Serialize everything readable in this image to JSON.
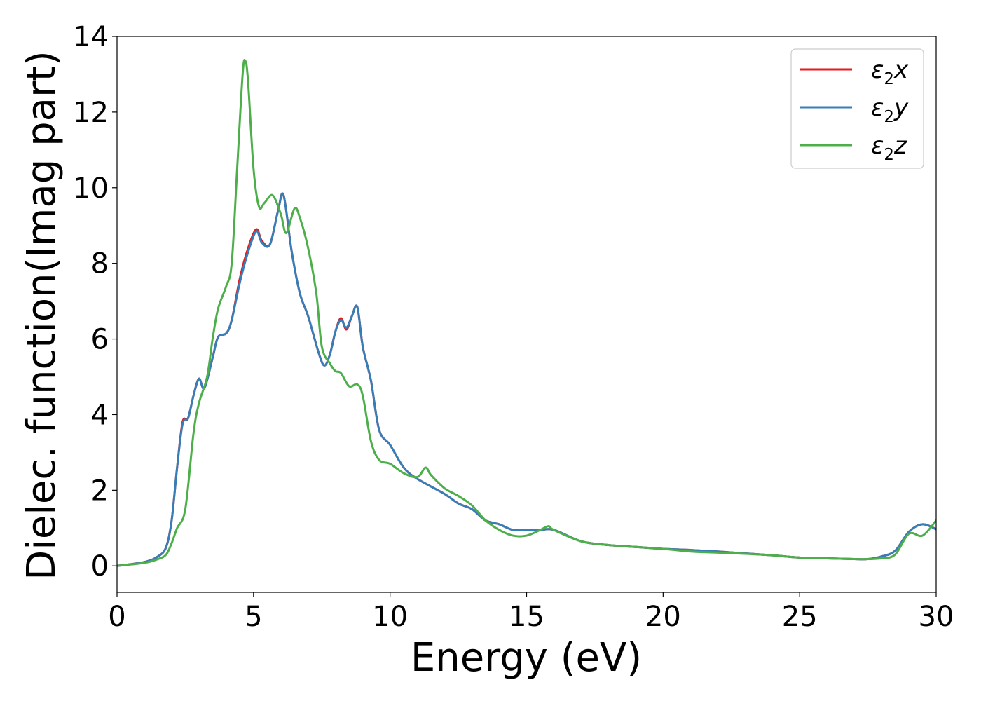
{
  "chart_data": {
    "type": "line",
    "title": "",
    "xlabel": "Energy (eV)",
    "ylabel": "Dielec. function(Imag part)",
    "xlim": [
      0,
      30
    ],
    "ylim": [
      -0.7,
      14
    ],
    "xticks": [
      0,
      5,
      10,
      15,
      20,
      25,
      30
    ],
    "yticks": [
      0,
      2,
      4,
      6,
      8,
      10,
      12,
      14
    ],
    "grid": false,
    "legend_position": "top-right",
    "series": [
      {
        "name": "ε2x",
        "base": "ε",
        "sub": "2",
        "suffix": "x",
        "color": "#e41a1c",
        "x": [
          0,
          1,
          1.5,
          1.8,
          2.0,
          2.2,
          2.4,
          2.6,
          2.8,
          3.0,
          3.2,
          3.5,
          3.7,
          4.0,
          4.2,
          4.5,
          4.8,
          5.1,
          5.3,
          5.6,
          5.9,
          6.1,
          6.4,
          6.7,
          7.0,
          7.4,
          7.6,
          7.8,
          8.0,
          8.2,
          8.4,
          8.6,
          8.8,
          9.0,
          9.3,
          9.6,
          10.0,
          10.5,
          11.0,
          12.0,
          12.5,
          13.0,
          13.5,
          14.0,
          14.5,
          15.0,
          15.5,
          16.0,
          17.0,
          18.0,
          19.0,
          20.0,
          21.0,
          22.0,
          23.0,
          24.0,
          25.0,
          26.0,
          27.0,
          27.5,
          28.0,
          28.5,
          29.0,
          29.5,
          30.0
        ],
        "y": [
          0.0,
          0.1,
          0.25,
          0.5,
          1.2,
          2.6,
          3.8,
          3.9,
          4.5,
          4.95,
          4.7,
          5.5,
          6.05,
          6.15,
          6.5,
          7.6,
          8.4,
          8.9,
          8.6,
          8.5,
          9.4,
          9.8,
          8.3,
          7.2,
          6.6,
          5.6,
          5.3,
          5.6,
          6.2,
          6.55,
          6.25,
          6.6,
          6.85,
          5.8,
          4.9,
          3.6,
          3.2,
          2.6,
          2.3,
          1.9,
          1.65,
          1.5,
          1.2,
          1.1,
          0.95,
          0.95,
          0.95,
          0.95,
          0.65,
          0.55,
          0.5,
          0.45,
          0.42,
          0.38,
          0.33,
          0.28,
          0.22,
          0.2,
          0.18,
          0.18,
          0.25,
          0.4,
          0.9,
          1.1,
          0.97
        ]
      },
      {
        "name": "ε2y",
        "base": "ε",
        "sub": "2",
        "suffix": "y",
        "color": "#377eb8",
        "x": [
          0,
          1,
          1.5,
          1.8,
          2.0,
          2.2,
          2.4,
          2.6,
          2.8,
          3.0,
          3.2,
          3.5,
          3.7,
          4.0,
          4.2,
          4.5,
          4.8,
          5.1,
          5.3,
          5.6,
          5.9,
          6.1,
          6.4,
          6.7,
          7.0,
          7.4,
          7.6,
          7.8,
          8.0,
          8.2,
          8.4,
          8.6,
          8.8,
          9.0,
          9.3,
          9.6,
          10.0,
          10.5,
          11.0,
          12.0,
          12.5,
          13.0,
          13.5,
          14.0,
          14.5,
          15.0,
          15.5,
          16.0,
          17.0,
          18.0,
          19.0,
          20.0,
          21.0,
          22.0,
          23.0,
          24.0,
          25.0,
          26.0,
          27.0,
          27.5,
          28.0,
          28.5,
          29.0,
          29.5,
          30.0
        ],
        "y": [
          0.0,
          0.1,
          0.25,
          0.5,
          1.2,
          2.6,
          3.75,
          3.9,
          4.5,
          4.95,
          4.7,
          5.5,
          6.05,
          6.15,
          6.5,
          7.5,
          8.3,
          8.85,
          8.55,
          8.5,
          9.4,
          9.8,
          8.3,
          7.2,
          6.6,
          5.6,
          5.3,
          5.6,
          6.2,
          6.5,
          6.3,
          6.6,
          6.85,
          5.8,
          4.9,
          3.6,
          3.2,
          2.6,
          2.3,
          1.9,
          1.65,
          1.5,
          1.2,
          1.1,
          0.95,
          0.95,
          0.95,
          0.95,
          0.65,
          0.55,
          0.5,
          0.45,
          0.42,
          0.38,
          0.33,
          0.28,
          0.22,
          0.2,
          0.18,
          0.18,
          0.25,
          0.4,
          0.9,
          1.1,
          0.97
        ]
      },
      {
        "name": "ε2z",
        "base": "ε",
        "sub": "2",
        "suffix": "z",
        "color": "#4daf4a",
        "x": [
          0,
          1,
          1.5,
          1.8,
          2.0,
          2.2,
          2.5,
          2.8,
          3.0,
          3.3,
          3.5,
          3.7,
          4.0,
          4.2,
          4.4,
          4.6,
          4.7,
          4.8,
          5.0,
          5.2,
          5.4,
          5.7,
          6.0,
          6.2,
          6.5,
          6.7,
          7.0,
          7.3,
          7.5,
          7.8,
          8.0,
          8.2,
          8.5,
          8.8,
          9.0,
          9.3,
          9.6,
          10.0,
          10.5,
          11.0,
          11.3,
          11.5,
          12.0,
          12.5,
          13.0,
          13.5,
          14.0,
          14.5,
          15.0,
          15.5,
          15.8,
          16.0,
          17.0,
          18.0,
          19.0,
          20.0,
          21.0,
          22.0,
          23.0,
          24.0,
          25.0,
          26.0,
          27.0,
          27.5,
          28.0,
          28.5,
          29.0,
          29.5,
          30.0
        ],
        "y": [
          0.0,
          0.08,
          0.18,
          0.3,
          0.6,
          1.0,
          1.5,
          3.5,
          4.3,
          5.0,
          6.0,
          6.8,
          7.4,
          8.0,
          10.5,
          13.0,
          13.35,
          12.8,
          10.5,
          9.5,
          9.6,
          9.8,
          9.3,
          8.8,
          9.45,
          9.2,
          8.4,
          7.2,
          5.8,
          5.35,
          5.15,
          5.1,
          4.75,
          4.8,
          4.5,
          3.3,
          2.8,
          2.7,
          2.45,
          2.35,
          2.6,
          2.4,
          2.05,
          1.85,
          1.6,
          1.2,
          0.95,
          0.8,
          0.8,
          0.95,
          1.05,
          0.95,
          0.65,
          0.55,
          0.5,
          0.45,
          0.38,
          0.35,
          0.32,
          0.28,
          0.22,
          0.2,
          0.18,
          0.18,
          0.2,
          0.3,
          0.85,
          0.8,
          1.2
        ]
      }
    ]
  }
}
